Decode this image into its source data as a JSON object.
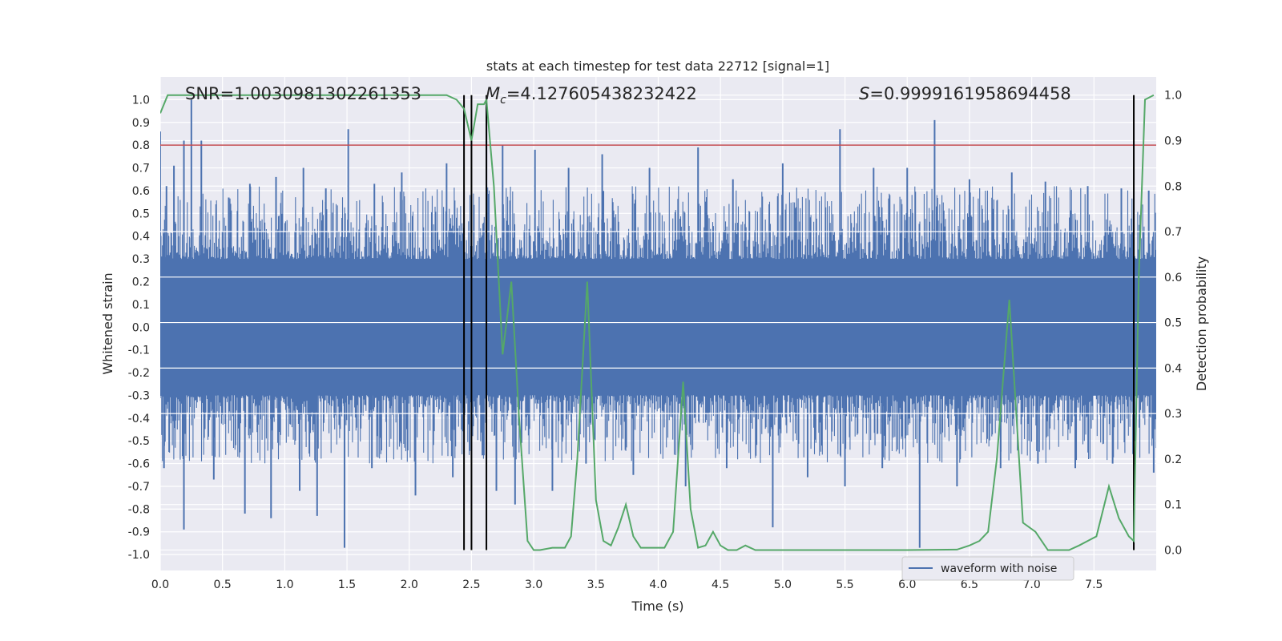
{
  "chart_data": {
    "type": "line",
    "title": "stats at each timestep for test data 22712 [signal=1]",
    "xlabel": "Time (s)",
    "ylabel_left": "Whitened strain",
    "ylabel_right": "Detection probability",
    "xlim": [
      0.0,
      8.0
    ],
    "ylim_left": [
      -1.07,
      1.1
    ],
    "ylim_right": [
      -0.045,
      1.04
    ],
    "x_ticks": [
      "0.0",
      "0.5",
      "1.0",
      "1.5",
      "2.0",
      "2.5",
      "3.0",
      "3.5",
      "4.0",
      "4.5",
      "5.0",
      "5.5",
      "6.0",
      "6.5",
      "7.0",
      "7.5"
    ],
    "y_ticks_left": [
      "-1.0",
      "-0.9",
      "-0.8",
      "-0.7",
      "-0.6",
      "-0.5",
      "-0.4",
      "-0.3",
      "-0.2",
      "-0.1",
      "0.0",
      "0.1",
      "0.2",
      "0.3",
      "0.4",
      "0.5",
      "0.6",
      "0.7",
      "0.8",
      "0.9",
      "1.0"
    ],
    "y_ticks_right": [
      "0.0",
      "0.1",
      "0.2",
      "0.3",
      "0.4",
      "0.5",
      "0.6",
      "0.7",
      "0.8",
      "0.9",
      "1.0"
    ],
    "grid": true,
    "legend": {
      "placement": "lower-right",
      "entries": [
        "waveform with noise"
      ]
    },
    "annotations": {
      "snr": "SNR=1.0030981302261353",
      "mc_symbol": "M",
      "mc_sub": "c",
      "mc_value": "=4.127605438232422",
      "s_symbol": "S",
      "s_value": "=0.9999161958694458"
    },
    "threshold": {
      "axis": "left",
      "y": 0.8,
      "color": "#c44e52"
    },
    "vertical_lines": {
      "x": [
        2.44,
        2.5,
        2.62,
        7.82
      ],
      "y_range": [
        0.0,
        1.0
      ],
      "axis": "right",
      "color": "#000000"
    },
    "series": [
      {
        "name": "waveform with noise",
        "axis": "left",
        "color": "#4c72b0",
        "representation": "dense noisy waveform, envelope summarised",
        "band_low": -0.26,
        "band_high": 0.27,
        "spikes": [
          {
            "x": 0.0,
            "y": 0.86
          },
          {
            "x": 0.05,
            "y": 0.62
          },
          {
            "x": 0.11,
            "y": 0.71
          },
          {
            "x": 0.19,
            "y": 0.82
          },
          {
            "x": 0.25,
            "y": 1.0
          },
          {
            "x": 0.33,
            "y": 0.82
          },
          {
            "x": 0.55,
            "y": 0.57
          },
          {
            "x": 0.72,
            "y": 0.63
          },
          {
            "x": 0.93,
            "y": 0.66
          },
          {
            "x": 1.15,
            "y": 0.7
          },
          {
            "x": 1.33,
            "y": 0.61
          },
          {
            "x": 1.51,
            "y": 0.87
          },
          {
            "x": 1.72,
            "y": 0.63
          },
          {
            "x": 1.94,
            "y": 0.68
          },
          {
            "x": 2.3,
            "y": 0.72
          },
          {
            "x": 2.62,
            "y": 0.97
          },
          {
            "x": 2.75,
            "y": 0.8
          },
          {
            "x": 3.01,
            "y": 0.78
          },
          {
            "x": 3.28,
            "y": 0.7
          },
          {
            "x": 3.55,
            "y": 0.76
          },
          {
            "x": 3.93,
            "y": 0.7
          },
          {
            "x": 4.32,
            "y": 0.79
          },
          {
            "x": 4.6,
            "y": 0.65
          },
          {
            "x": 5.0,
            "y": 0.72
          },
          {
            "x": 5.46,
            "y": 0.87
          },
          {
            "x": 5.73,
            "y": 0.7
          },
          {
            "x": 6.0,
            "y": 0.7
          },
          {
            "x": 6.22,
            "y": 0.91
          },
          {
            "x": 6.5,
            "y": 0.65
          },
          {
            "x": 6.84,
            "y": 0.68
          },
          {
            "x": 7.11,
            "y": 0.64
          },
          {
            "x": 7.45,
            "y": 0.62
          },
          {
            "x": 7.72,
            "y": 0.61
          },
          {
            "x": 7.94,
            "y": 0.6
          },
          {
            "x": 0.03,
            "y": -0.62
          },
          {
            "x": 0.19,
            "y": -0.89
          },
          {
            "x": 0.43,
            "y": -0.67
          },
          {
            "x": 0.68,
            "y": -0.82
          },
          {
            "x": 0.89,
            "y": -0.84
          },
          {
            "x": 1.12,
            "y": -0.72
          },
          {
            "x": 1.26,
            "y": -0.83
          },
          {
            "x": 1.48,
            "y": -0.97
          },
          {
            "x": 1.7,
            "y": -0.62
          },
          {
            "x": 2.05,
            "y": -0.74
          },
          {
            "x": 2.35,
            "y": -0.66
          },
          {
            "x": 2.7,
            "y": -0.72
          },
          {
            "x": 2.85,
            "y": -0.78
          },
          {
            "x": 3.15,
            "y": -0.72
          },
          {
            "x": 3.42,
            "y": -0.6
          },
          {
            "x": 3.8,
            "y": -0.65
          },
          {
            "x": 4.22,
            "y": -0.7
          },
          {
            "x": 4.55,
            "y": -0.62
          },
          {
            "x": 4.92,
            "y": -0.88
          },
          {
            "x": 5.2,
            "y": -0.66
          },
          {
            "x": 5.5,
            "y": -0.7
          },
          {
            "x": 5.8,
            "y": -0.62
          },
          {
            "x": 6.1,
            "y": -0.97
          },
          {
            "x": 6.4,
            "y": -0.7
          },
          {
            "x": 6.75,
            "y": -0.62
          },
          {
            "x": 7.05,
            "y": -0.6
          },
          {
            "x": 7.35,
            "y": -0.62
          },
          {
            "x": 7.65,
            "y": -0.6
          },
          {
            "x": 7.98,
            "y": -0.64
          }
        ]
      },
      {
        "name": "",
        "axis": "right",
        "color": "#55a868",
        "x": [
          0.0,
          0.06,
          0.2,
          0.5,
          1.0,
          1.5,
          2.0,
          2.3,
          2.38,
          2.44,
          2.5,
          2.55,
          2.6,
          2.62,
          2.68,
          2.75,
          2.82,
          2.88,
          2.95,
          3.0,
          3.05,
          3.15,
          3.25,
          3.3,
          3.35,
          3.43,
          3.5,
          3.56,
          3.62,
          3.68,
          3.74,
          3.8,
          3.86,
          3.93,
          3.98,
          4.05,
          4.12,
          4.2,
          4.26,
          4.32,
          4.38,
          4.44,
          4.5,
          4.56,
          4.63,
          4.7,
          4.78,
          4.85,
          4.93,
          5.0,
          5.1,
          5.5,
          6.0,
          6.4,
          6.5,
          6.58,
          6.65,
          6.72,
          6.82,
          6.93,
          7.03,
          7.13,
          7.2,
          7.3,
          7.38,
          7.45,
          7.52,
          7.62,
          7.7,
          7.78,
          7.82,
          7.86,
          7.91,
          7.98
        ],
        "y": [
          0.96,
          1.0,
          1.0,
          1.0,
          1.0,
          1.0,
          1.0,
          1.0,
          0.99,
          0.97,
          0.9,
          0.98,
          0.98,
          0.99,
          0.8,
          0.43,
          0.59,
          0.3,
          0.02,
          0.0,
          0.0,
          0.005,
          0.005,
          0.03,
          0.2,
          0.59,
          0.11,
          0.02,
          0.01,
          0.05,
          0.1,
          0.03,
          0.005,
          0.005,
          0.005,
          0.005,
          0.04,
          0.37,
          0.09,
          0.005,
          0.01,
          0.04,
          0.01,
          0.0,
          0.0,
          0.01,
          0.0,
          0.0,
          0.0,
          0.0,
          0.0,
          0.0,
          0.0,
          0.001,
          0.01,
          0.02,
          0.04,
          0.2,
          0.55,
          0.06,
          0.04,
          0.0,
          0.0,
          0.0,
          0.01,
          0.02,
          0.03,
          0.14,
          0.07,
          0.03,
          0.02,
          0.6,
          0.99,
          1.0
        ]
      }
    ]
  }
}
